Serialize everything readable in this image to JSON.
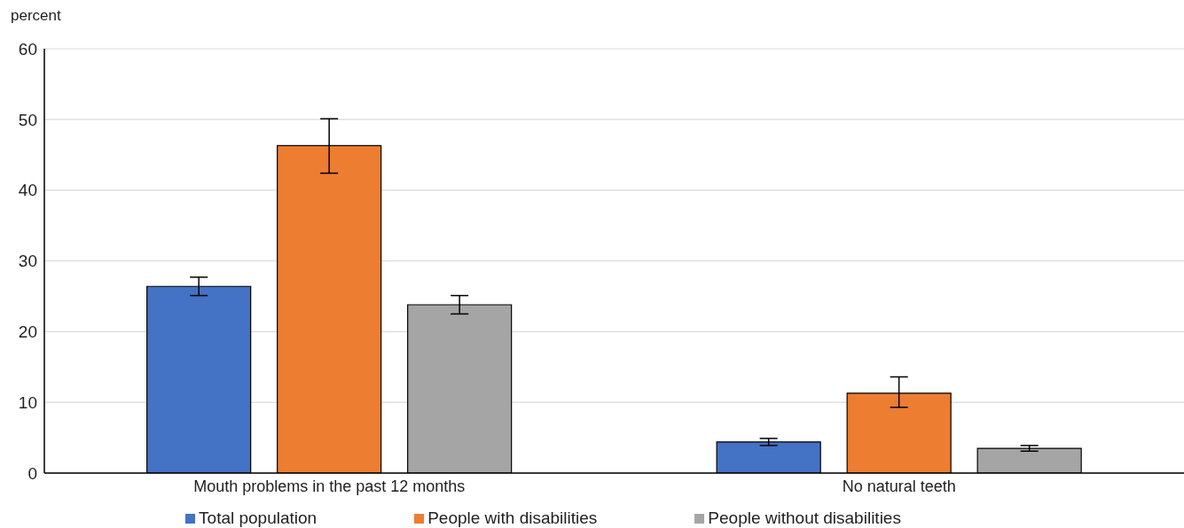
{
  "chart_data": {
    "type": "bar",
    "ylabel": "percent",
    "categories": [
      "Mouth problems in the past 12 months",
      "No natural teeth"
    ],
    "series": [
      {
        "name": "Total population",
        "color": "#4472c4",
        "values": [
          26.4,
          4.4
        ],
        "errors": [
          [
            25.1,
            27.7
          ],
          [
            3.9,
            4.9
          ]
        ]
      },
      {
        "name": "People with disabilities",
        "color": "#ed7d31",
        "values": [
          46.3,
          11.3
        ],
        "errors": [
          [
            42.4,
            50.1
          ],
          [
            9.3,
            13.6
          ]
        ]
      },
      {
        "name": "People without disabilities",
        "color": "#a5a5a5",
        "values": [
          23.8,
          3.5
        ],
        "errors": [
          [
            22.5,
            25.1
          ],
          [
            3.1,
            3.9
          ]
        ]
      }
    ],
    "ylim": [
      0,
      60
    ],
    "yticks": [
      0,
      10,
      20,
      30,
      40,
      50,
      60
    ],
    "grid": "y",
    "legend": "bottom"
  }
}
